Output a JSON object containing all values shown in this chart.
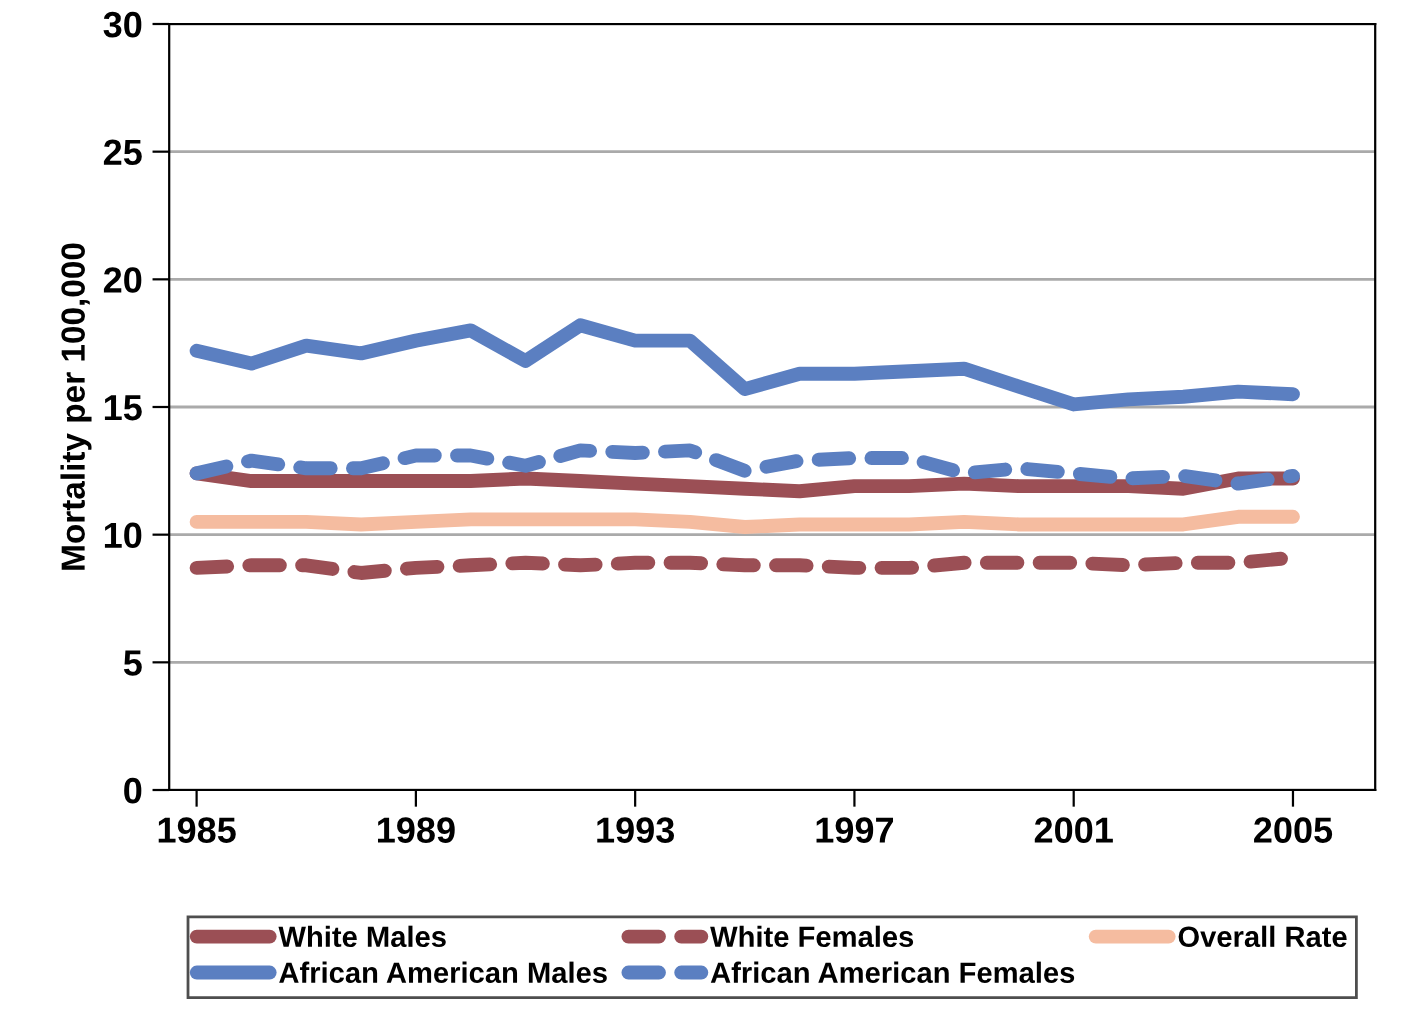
{
  "chart_data": {
    "type": "line",
    "ylabel": "Mortality per 100,000",
    "x": [
      1985,
      1986,
      1987,
      1988,
      1989,
      1990,
      1991,
      1992,
      1993,
      1994,
      1995,
      1996,
      1997,
      1998,
      1999,
      2000,
      2001,
      2002,
      2003,
      2004,
      2005
    ],
    "xlim": [
      1984.5,
      2006.5
    ],
    "xticks": [
      1985,
      1989,
      1993,
      1997,
      2001,
      2005
    ],
    "ylim": [
      0,
      30
    ],
    "yticks": [
      0,
      5,
      10,
      15,
      20,
      25,
      30
    ],
    "grid": "y",
    "legend": "bottom",
    "series": [
      {
        "name": "White Males",
        "color": "#9b4f55",
        "line_style": "solid",
        "values": [
          12.4,
          12.1,
          12.1,
          12.1,
          12.1,
          12.1,
          12.2,
          12.1,
          12.0,
          11.9,
          11.8,
          11.7,
          11.9,
          11.9,
          12.0,
          11.9,
          11.9,
          11.9,
          11.8,
          12.2,
          12.2
        ]
      },
      {
        "name": "White Females",
        "color": "#9b4f55",
        "line_style": "dashed",
        "values": [
          8.7,
          8.8,
          8.8,
          8.5,
          8.7,
          8.8,
          8.9,
          8.8,
          8.9,
          8.9,
          8.8,
          8.8,
          8.7,
          8.7,
          8.9,
          8.9,
          8.9,
          8.8,
          8.9,
          8.9,
          9.1
        ]
      },
      {
        "name": "Overall Rate",
        "color": "#f5bca0",
        "line_style": "solid",
        "values": [
          10.5,
          10.5,
          10.5,
          10.4,
          10.5,
          10.6,
          10.6,
          10.6,
          10.6,
          10.5,
          10.3,
          10.4,
          10.4,
          10.4,
          10.5,
          10.4,
          10.4,
          10.4,
          10.4,
          10.7,
          10.7
        ]
      },
      {
        "name": "African American Males",
        "color": "#5b7fc1",
        "line_style": "solid",
        "values": [
          17.2,
          16.7,
          17.4,
          17.1,
          17.6,
          18.0,
          16.8,
          18.2,
          17.6,
          17.6,
          15.7,
          16.3,
          16.3,
          16.4,
          16.5,
          15.8,
          15.1,
          15.3,
          15.4,
          15.6,
          15.5
        ]
      },
      {
        "name": "African American Females",
        "color": "#5b7fc1",
        "line_style": "dashed",
        "values": [
          12.4,
          12.9,
          12.6,
          12.6,
          13.1,
          13.1,
          12.7,
          13.3,
          13.2,
          13.3,
          12.5,
          12.9,
          13.0,
          13.0,
          12.4,
          12.6,
          12.4,
          12.2,
          12.3,
          12.0,
          12.3
        ]
      }
    ]
  }
}
